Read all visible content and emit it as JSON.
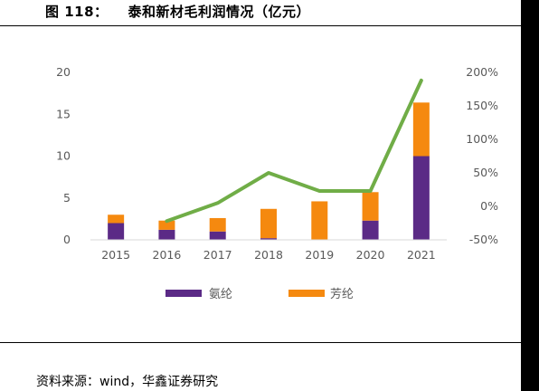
{
  "title": {
    "number": "图 118：",
    "text": "泰和新材毛利润情况（亿元）"
  },
  "source": "资料来源：wind，华鑫证券研究",
  "colors": {
    "spandex": "#5b2a86",
    "aramid": "#f5890f",
    "line": "#70ad47"
  },
  "chart_data": {
    "type": "bar",
    "stacked": true,
    "categories": [
      "2015",
      "2016",
      "2017",
      "2018",
      "2019",
      "2020",
      "2021"
    ],
    "series": [
      {
        "name": "氨纶",
        "values": [
          2.0,
          1.2,
          1.0,
          0.2,
          0.0,
          2.3,
          10.0
        ]
      },
      {
        "name": "芳纶",
        "values": [
          1.0,
          1.1,
          1.6,
          3.5,
          4.6,
          3.4,
          6.4
        ]
      },
      {
        "name": "",
        "type": "line",
        "axis": "right",
        "x": [
          "2016",
          "2017",
          "2018",
          "2019",
          "2020",
          "2021"
        ],
        "values": [
          -22,
          5,
          50,
          23,
          23,
          188
        ]
      }
    ],
    "ylim": [
      0,
      20
    ],
    "yticks": [
      "0",
      "5",
      "10",
      "15",
      "20"
    ],
    "y2lim": [
      -50,
      200
    ],
    "y2ticks": [
      "-50%",
      "0%",
      "50%",
      "100%",
      "150%",
      "200%"
    ],
    "grid": false,
    "legend": "bottom"
  }
}
